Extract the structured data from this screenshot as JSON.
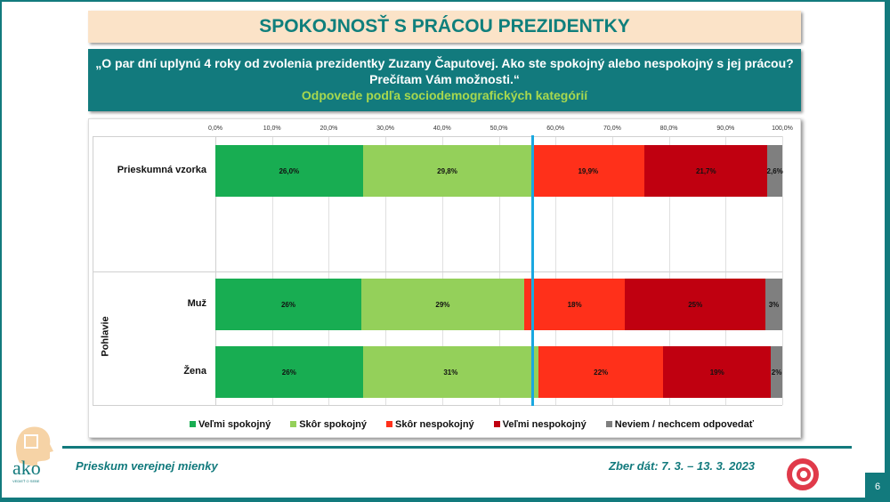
{
  "header": {
    "title": "SPOKOJNOSŤ S PRÁCOU PREZIDENTKY"
  },
  "question": {
    "text": "„O par dní uplynú 4 roky od zvolenia prezidentky Zuzany Čaputovej. Ako ste spokojný alebo nespokojný s jej prácou? Prečítam Vám možnosti.“",
    "subtitle": "Odpovede podľa sociodemografických kategórií"
  },
  "chart_data": {
    "type": "bar",
    "orientation": "horizontal",
    "stacked": true,
    "xlim": [
      0,
      100
    ],
    "ticks": [
      "0,0%",
      "10,0%",
      "20,0%",
      "30,0%",
      "40,0%",
      "50,0%",
      "60,0%",
      "70,0%",
      "80,0%",
      "90,0%",
      "100,0%"
    ],
    "group_label": "Pohlavie",
    "series": [
      {
        "name": "Veľmi spokojný",
        "color": "#18ad52"
      },
      {
        "name": "Skôr spokojný",
        "color": "#94d05a"
      },
      {
        "name": "Skôr nespokojný",
        "color": "#ff301a"
      },
      {
        "name": "Veľmi nespokojný",
        "color": "#c00010"
      },
      {
        "name": "Neviem / nechcem odpovedať",
        "color": "#7f7f7f"
      }
    ],
    "rows": [
      {
        "category": "Prieskumná vzorka",
        "values": [
          26.0,
          29.8,
          19.9,
          21.7,
          2.6
        ],
        "labels": [
          "26,0%",
          "29,8%",
          "19,9%",
          "21,7%",
          "2,6%"
        ]
      },
      {
        "category": "Muž",
        "values": [
          26,
          29,
          18,
          25,
          3
        ],
        "labels": [
          "26%",
          "29%",
          "18%",
          "25%",
          "3%"
        ]
      },
      {
        "category": "Žena",
        "values": [
          26,
          31,
          22,
          19,
          2
        ],
        "labels": [
          "26%",
          "31%",
          "22%",
          "19%",
          "2%"
        ]
      }
    ],
    "reference_line": 55.9,
    "legend": "bottom"
  },
  "footer": {
    "left": "Prieskum verejnej mienky",
    "right": "Zber dát: 7. 3. – 13. 3. 2023",
    "page": "6",
    "logo_text": "ako",
    "logo_tagline": "VEDIEŤ O SEBE"
  }
}
